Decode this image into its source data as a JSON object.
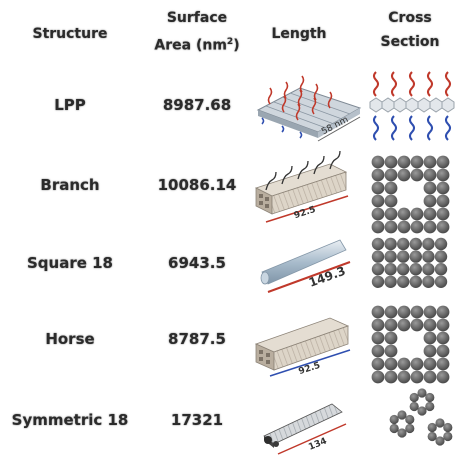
{
  "headers": {
    "structure": "Structure",
    "surface_area_line1": "Surface",
    "surface_area_line2": "Area (nm",
    "surface_area_sup": "2",
    "surface_area_close": ")",
    "length": "Length",
    "cross_section_line1": "Cross",
    "cross_section_line2": "Section"
  },
  "rows": [
    {
      "structure": "LPP",
      "surface_area": "8987.68",
      "length_label": "58 nm"
    },
    {
      "structure": "Branch",
      "surface_area": "10086.14",
      "length_label": "92.5"
    },
    {
      "structure": "Square 18",
      "surface_area": "6943.5",
      "length_label": "149.3"
    },
    {
      "structure": "Horse",
      "surface_area": "8787.5",
      "length_label": "92.5"
    },
    {
      "structure": "Symmetric 18",
      "surface_area": "17321",
      "length_label": "134"
    }
  ],
  "colors": {
    "chain_red": "#c0392b",
    "chain_blue": "#2f4fb0",
    "helix_gray": "#6e6e6e",
    "bundle_tan": "#d8d0c4",
    "bundle_blue": "#b9cfe0"
  }
}
